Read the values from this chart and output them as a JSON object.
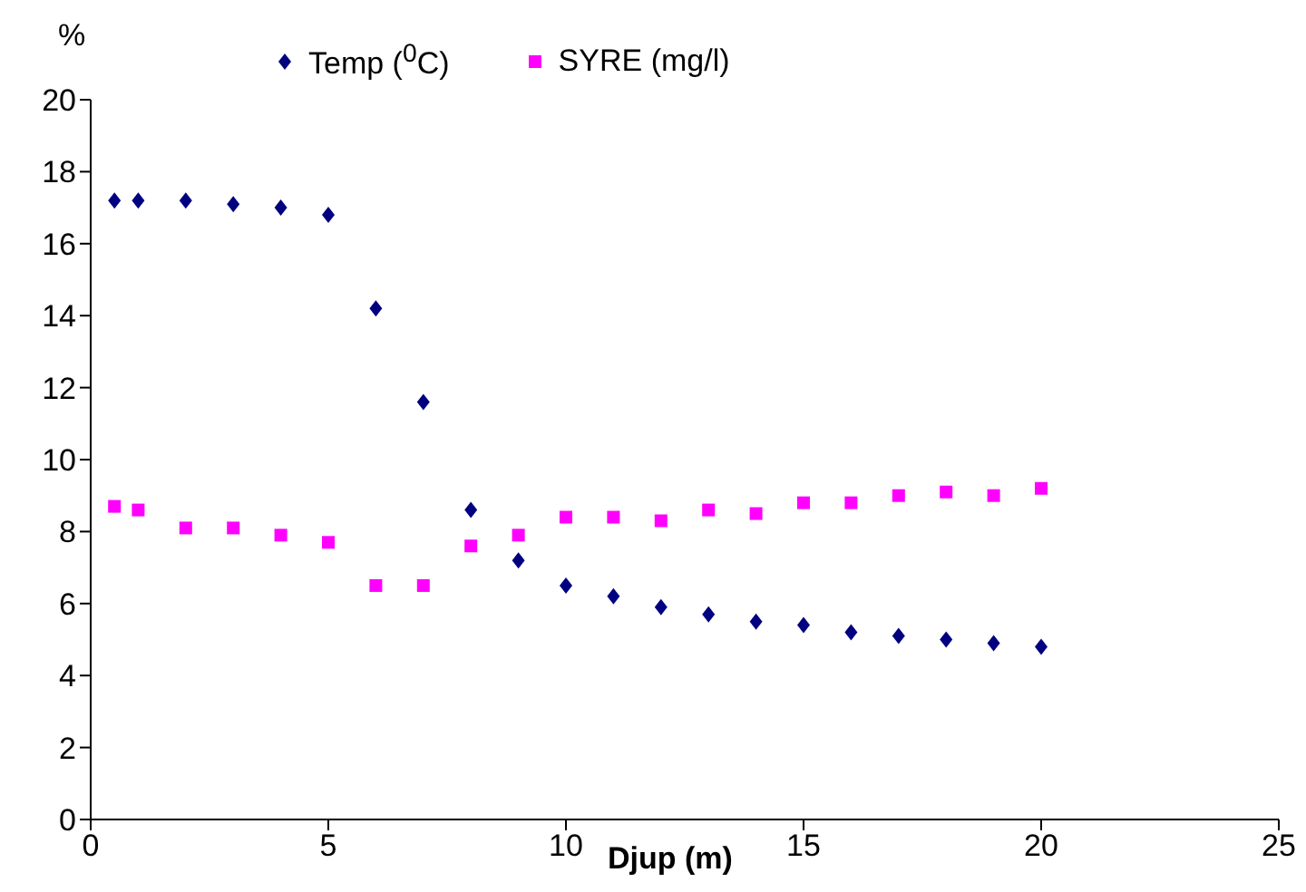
{
  "chart_data": {
    "type": "scatter",
    "ylabel": "%",
    "xlabel": "Djup (m)",
    "x": [
      0.5,
      1,
      2,
      3,
      4,
      5,
      6,
      7,
      8,
      9,
      10,
      11,
      12,
      13,
      14,
      15,
      16,
      17,
      18,
      19,
      20
    ],
    "series": [
      {
        "name": "Temp ($^{0}$C)",
        "color": "#000080",
        "marker": "diamond",
        "values": [
          17.2,
          17.2,
          17.2,
          17.1,
          17.0,
          16.8,
          14.2,
          11.6,
          8.6,
          7.2,
          6.5,
          6.2,
          5.9,
          5.7,
          5.5,
          5.4,
          5.2,
          5.1,
          5.0,
          4.9,
          4.8
        ]
      },
      {
        "name": "SYRE (mg/l)",
        "color": "#ff00ff",
        "marker": "square",
        "values": [
          8.7,
          8.6,
          8.1,
          8.1,
          7.9,
          7.7,
          6.5,
          6.5,
          7.6,
          7.9,
          8.4,
          8.4,
          8.3,
          8.6,
          8.5,
          8.8,
          8.8,
          9.0,
          9.1,
          9.0,
          9.2
        ]
      }
    ],
    "xlim": [
      0,
      25
    ],
    "xticks": [
      0,
      5,
      10,
      15,
      20,
      25
    ],
    "ylim": [
      0,
      20
    ],
    "yticks": [
      0,
      2,
      4,
      6,
      8,
      10,
      12,
      14,
      16,
      18,
      20
    ],
    "grid": false,
    "legend": "top"
  }
}
